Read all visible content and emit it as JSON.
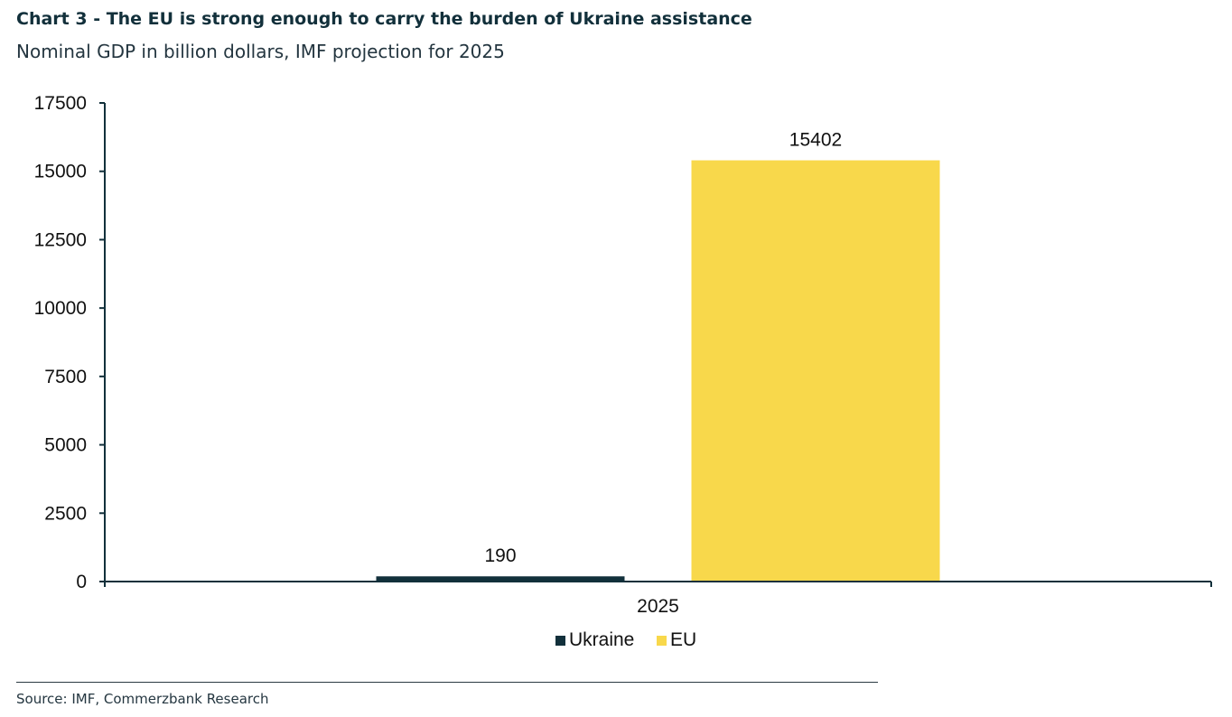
{
  "header": {
    "title": "Chart 3 - The EU is strong enough to carry the burden of Ukraine assistance",
    "subtitle": "Nominal GDP in billion dollars, IMF projection for 2025"
  },
  "chart_data": {
    "type": "bar",
    "categories": [
      "2025"
    ],
    "series": [
      {
        "name": "Ukraine",
        "values": [
          190
        ],
        "color": "#12303b"
      },
      {
        "name": "EU",
        "values": [
          15402
        ],
        "color": "#f8d84b"
      }
    ],
    "ylim": [
      0,
      17500
    ],
    "yticks": [
      0,
      2500,
      5000,
      7500,
      10000,
      12500,
      15000,
      17500
    ],
    "data_labels": [
      "190",
      "15402"
    ],
    "xlabel": "",
    "ylabel": "",
    "grid": false,
    "legend_position": "bottom"
  },
  "footer": {
    "source": "Source: IMF, Commerzbank Research"
  }
}
